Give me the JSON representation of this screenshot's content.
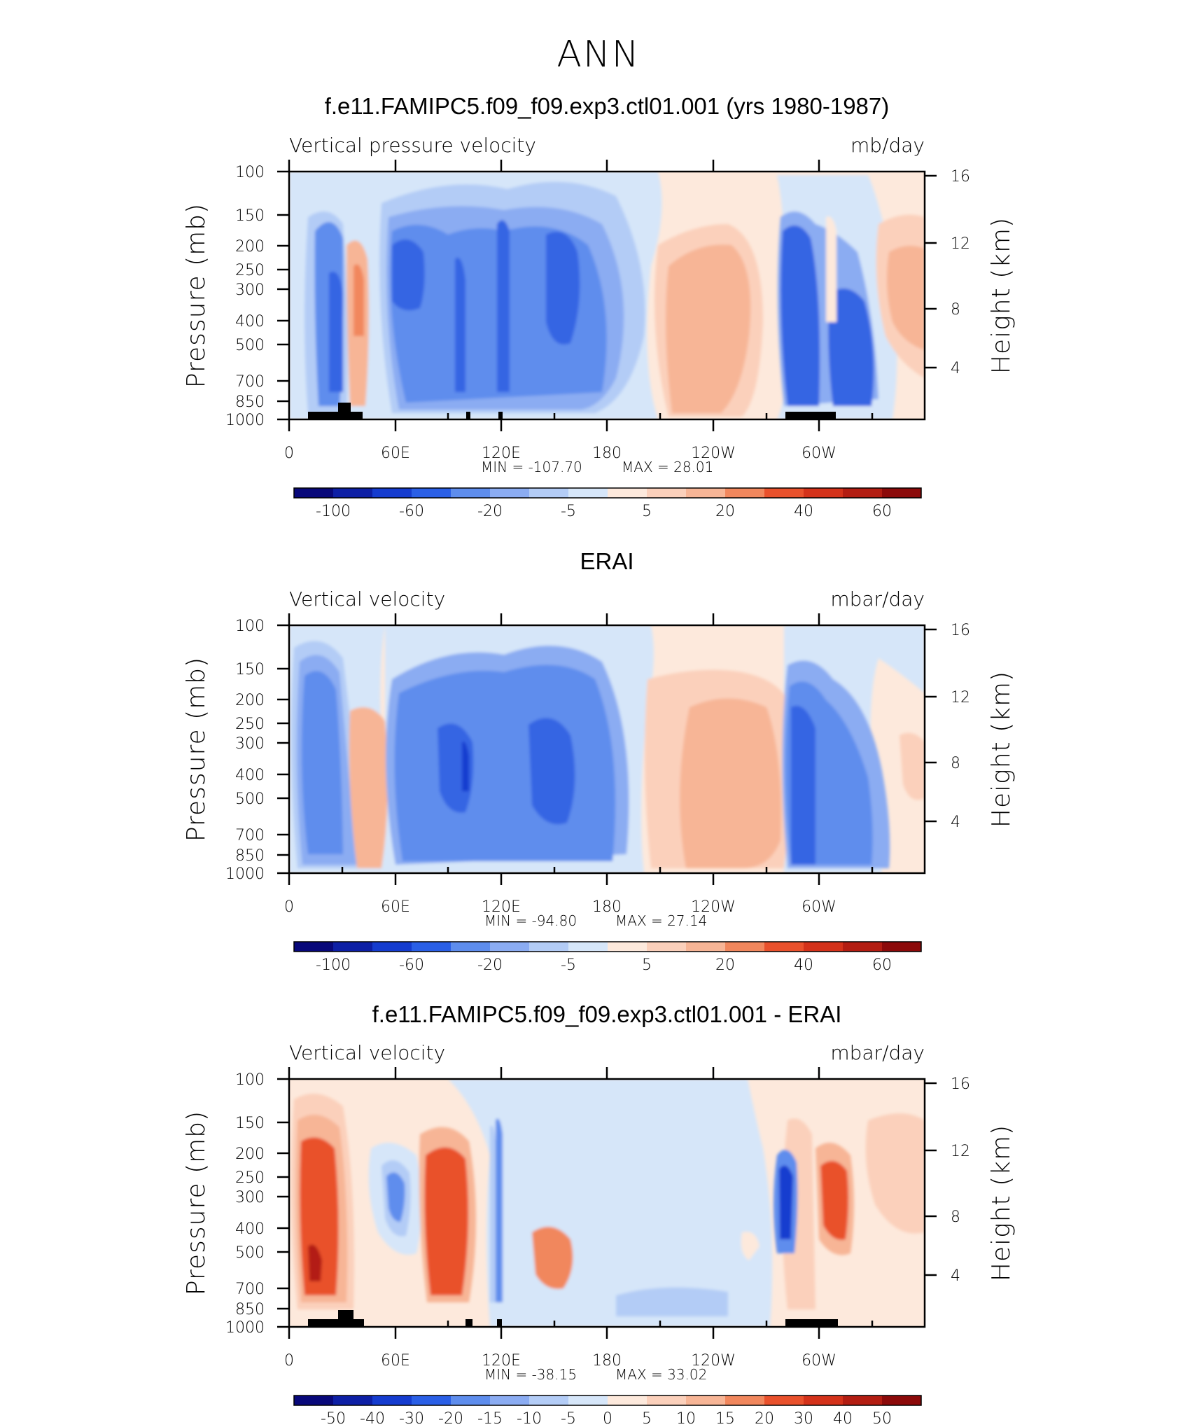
{
  "suptitle": "ANN",
  "chart_data": [
    {
      "type": "heatmap",
      "title": "f.e11.FAMIPC5.f09_f09.exp3.ctl01.001 (yrs 1980-1987)",
      "variable_label": "Vertical pressure velocity",
      "units": "mb/day",
      "ylabel": "Pressure (mb)",
      "ylabel_right": "Height (km)",
      "x_ticks": [
        "0",
        "60E",
        "120E",
        "180",
        "120W",
        "60W"
      ],
      "y_ticks": [
        "100",
        "150",
        "200",
        "250",
        "300",
        "400",
        "500",
        "700",
        "850",
        "1000"
      ],
      "y_right_ticks": [
        "16",
        "12",
        "8",
        "4"
      ],
      "min_label": "MIN =  -107.70",
      "max_label": "MAX =   28.01",
      "levels": [
        "-100",
        "-60",
        "-20",
        "-5",
        "5",
        "20",
        "40",
        "60"
      ],
      "features": [
        {
          "lon": 20,
          "p_top": 180,
          "value": -40
        },
        {
          "lon": 35,
          "p_top": 220,
          "value": 15
        },
        {
          "lon": 75,
          "p_top": 130,
          "value": -20
        },
        {
          "lon": 100,
          "p_top": 110,
          "value": -30
        },
        {
          "lon": 135,
          "p_top": 130,
          "value": -40
        },
        {
          "lon": 160,
          "p_top": 150,
          "value": -20
        },
        {
          "lon": 240,
          "p_top": 170,
          "value": 15
        },
        {
          "lon": 285,
          "p_top": 150,
          "value": -40
        },
        {
          "lon": 300,
          "p_top": 180,
          "value": 5
        },
        {
          "lon": 345,
          "p_top": 190,
          "value": 15
        }
      ]
    },
    {
      "type": "heatmap",
      "title": "ERAI",
      "variable_label": "Vertical velocity",
      "units": "mbar/day",
      "ylabel": "Pressure (mb)",
      "ylabel_right": "Height (km)",
      "x_ticks": [
        "0",
        "60E",
        "120E",
        "180",
        "120W",
        "60W"
      ],
      "y_ticks": [
        "100",
        "150",
        "200",
        "250",
        "300",
        "400",
        "500",
        "700",
        "850",
        "1000"
      ],
      "y_right_ticks": [
        "16",
        "12",
        "8",
        "4"
      ],
      "min_label": "MIN =  -94.80",
      "max_label": "MAX =   27.14",
      "levels": [
        "-100",
        "-60",
        "-20",
        "-5",
        "5",
        "20",
        "40",
        "60"
      ],
      "features": [
        {
          "lon": 20,
          "p_top": 120,
          "value": -40
        },
        {
          "lon": 42,
          "p_top": 200,
          "value": 15
        },
        {
          "lon": 100,
          "p_top": 120,
          "value": -40
        },
        {
          "lon": 145,
          "p_top": 120,
          "value": -40
        },
        {
          "lon": 240,
          "p_top": 160,
          "value": 15
        },
        {
          "lon": 290,
          "p_top": 140,
          "value": -40
        },
        {
          "lon": 352,
          "p_top": 250,
          "value": 5
        }
      ]
    },
    {
      "type": "heatmap",
      "title": "f.e11.FAMIPC5.f09_f09.exp3.ctl01.001 - ERAI",
      "variable_label": "Vertical velocity",
      "units": "mbar/day",
      "ylabel": "Pressure (mb)",
      "ylabel_right": "Height (km)",
      "x_ticks": [
        "0",
        "60E",
        "120E",
        "180",
        "120W",
        "60W"
      ],
      "y_ticks": [
        "100",
        "150",
        "200",
        "250",
        "300",
        "400",
        "500",
        "700",
        "850",
        "1000"
      ],
      "y_right_ticks": [
        "16",
        "12",
        "8",
        "4"
      ],
      "min_label": "MIN =  -38.15",
      "max_label": "MAX =   33.02",
      "levels": [
        "-50",
        "-40",
        "-30",
        "-20",
        "-15",
        "-10",
        "-5",
        "0",
        "5",
        "10",
        "15",
        "20",
        "30",
        "40",
        "50"
      ],
      "features": [
        {
          "lon": 15,
          "p_top": 140,
          "value": 20
        },
        {
          "lon": 58,
          "p_top": 200,
          "value": -15
        },
        {
          "lon": 85,
          "p_top": 170,
          "value": 25
        },
        {
          "lon": 118,
          "p_top": 200,
          "value": -15
        },
        {
          "lon": 148,
          "p_top": 550,
          "value": 20
        },
        {
          "lon": 230,
          "p_top": 150,
          "value": -5
        },
        {
          "lon": 280,
          "p_top": 220,
          "value": -30
        },
        {
          "lon": 303,
          "p_top": 200,
          "value": 15
        },
        {
          "lon": 340,
          "p_top": 180,
          "value": 5
        }
      ]
    }
  ]
}
